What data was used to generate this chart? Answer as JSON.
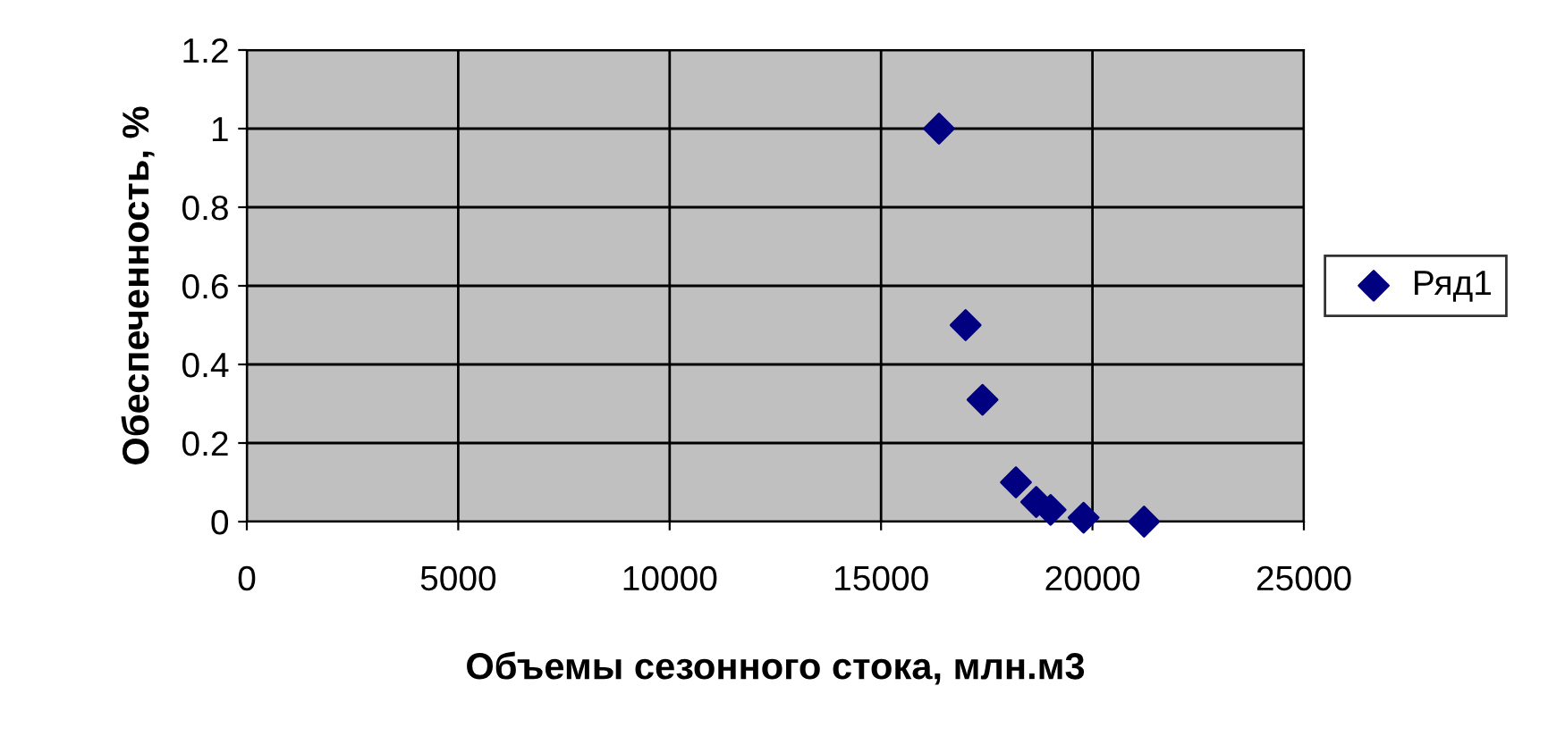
{
  "chart_data": {
    "type": "scatter",
    "xlabel": "Объемы сезонного стока, млн.м3",
    "ylabel": "Обеспеченность, %",
    "x": [
      16370,
      17000,
      17400,
      18190,
      18670,
      19010,
      19790,
      21220
    ],
    "series": [
      {
        "name": "Ряд1",
        "color": "#000080",
        "values": [
          1,
          0.5,
          0.31,
          0.1,
          0.05,
          0.03,
          0.01,
          0
        ]
      }
    ],
    "xlim": [
      0,
      25000
    ],
    "xticks": [
      0,
      5000,
      10000,
      15000,
      20000,
      25000
    ],
    "ylim": [
      0,
      1.2
    ],
    "yticks": [
      0,
      0.2,
      0.4,
      0.6,
      0.8,
      1,
      1.2
    ],
    "grid": true,
    "legend": "right",
    "marker": "diamond"
  }
}
